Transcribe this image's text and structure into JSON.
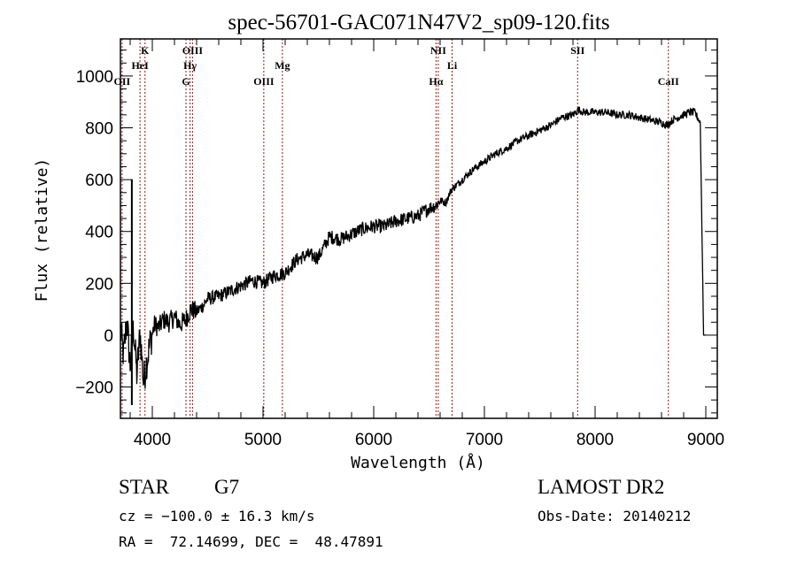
{
  "chart_data": {
    "type": "line",
    "title": "spec-56701-GAC071N47V2_sp09-120.fits",
    "xlabel": "Wavelength (Å)",
    "ylabel": "Flux (relative)",
    "xlim": [
      3712,
      9104
    ],
    "ylim": [
      -321,
      1143
    ],
    "xticks": [
      4000,
      5000,
      6000,
      7000,
      8000,
      9000
    ],
    "xtick_labels": [
      "4000",
      "5000",
      "6000",
      "7000",
      "8000",
      "9000"
    ],
    "xminor_step": 200,
    "yticks": [
      -200,
      0,
      200,
      400,
      600,
      800,
      1000
    ],
    "ytick_labels": [
      "−200",
      "0",
      "200",
      "400",
      "600",
      "800",
      "1000"
    ],
    "yminor_step": 50,
    "grid": false,
    "legend": "none",
    "series": [
      {
        "name": "spectrum",
        "color": "#000000",
        "x": [
          3712,
          3740,
          3770,
          3800,
          3830,
          3860,
          3890,
          3920,
          3950,
          3980,
          4020,
          4060,
          4100,
          4150,
          4200,
          4250,
          4300,
          4350,
          4400,
          4450,
          4500,
          4600,
          4700,
          4800,
          4900,
          5000,
          5100,
          5200,
          5300,
          5400,
          5500,
          5600,
          5700,
          5800,
          5900,
          6000,
          6100,
          6200,
          6300,
          6400,
          6500,
          6560,
          6600,
          6650,
          6700,
          6750,
          6800,
          6900,
          7000,
          7100,
          7200,
          7300,
          7400,
          7500,
          7600,
          7700,
          7800,
          7850,
          7900,
          8000,
          8100,
          8200,
          8300,
          8400,
          8500,
          8600,
          8650,
          8700,
          8800,
          8850,
          8900,
          8950,
          8980,
          9000
        ],
        "y": [
          20,
          -80,
          60,
          -120,
          30,
          -150,
          10,
          -180,
          -100,
          -30,
          40,
          30,
          60,
          50,
          70,
          40,
          60,
          100,
          90,
          110,
          140,
          150,
          170,
          190,
          210,
          200,
          230,
          240,
          290,
          310,
          300,
          380,
          370,
          390,
          410,
          420,
          420,
          440,
          450,
          460,
          490,
          500,
          520,
          510,
          560,
          580,
          600,
          640,
          670,
          700,
          720,
          750,
          770,
          790,
          810,
          840,
          850,
          870,
          860,
          860,
          860,
          850,
          850,
          840,
          830,
          820,
          810,
          830,
          850,
          860,
          860,
          820,
          0,
          0
        ]
      }
    ],
    "annotations": [
      {
        "label": "OII",
        "wavelength": 3727,
        "row": 3
      },
      {
        "label": "HeI",
        "wavelength": 3889,
        "row": 2
      },
      {
        "label": "K",
        "wavelength": 3934,
        "row": 1
      },
      {
        "label": "G",
        "wavelength": 4304,
        "row": 3
      },
      {
        "label": "Hγ",
        "wavelength": 4341,
        "row": 2
      },
      {
        "label": "OIII",
        "wavelength": 4363,
        "row": 1
      },
      {
        "label": "OIII",
        "wavelength": 5007,
        "row": 3
      },
      {
        "label": "Mg",
        "wavelength": 5175,
        "row": 2
      },
      {
        "label": "Hα",
        "wavelength": 6563,
        "row": 3
      },
      {
        "label": "NII",
        "wavelength": 6583,
        "row": 1
      },
      {
        "label": "Li",
        "wavelength": 6708,
        "row": 2
      },
      {
        "label": "SII",
        "wavelength": 7842,
        "row": 1
      },
      {
        "label": "CaII",
        "wavelength": 8662,
        "row": 3
      }
    ],
    "annotation_line_color": "#8b1a1a"
  },
  "info": {
    "object_class": "STAR",
    "subclass": "G7",
    "redshift_line": "cz = −100.0 ± 16.3 km/s",
    "coords_line": "RA =  72.14699, DEC =  48.47891",
    "survey": "LAMOST DR2",
    "obs_date": "Obs-Date: 20140212"
  }
}
